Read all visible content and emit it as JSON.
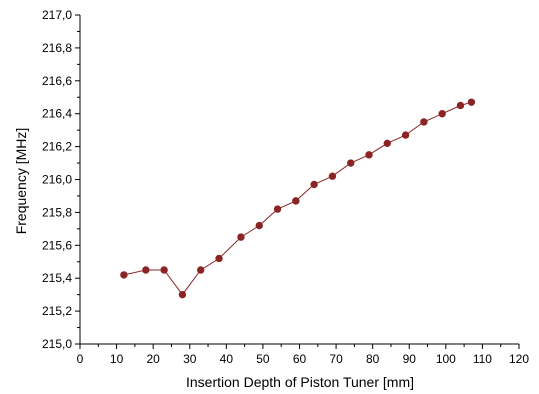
{
  "chart_data": {
    "type": "line",
    "title": "",
    "xlabel": "Insertion Depth of Piston Tuner [mm]",
    "ylabel": "Frequency [MHz]",
    "xlim": [
      0,
      120
    ],
    "ylim": [
      215.0,
      217.0
    ],
    "xticks": [
      "0",
      "10",
      "20",
      "30",
      "40",
      "50",
      "60",
      "70",
      "80",
      "90",
      "100",
      "110",
      "120"
    ],
    "yticks": [
      "215,0",
      "215,2",
      "215,4",
      "215,6",
      "215,8",
      "216,0",
      "216,2",
      "216,4",
      "216,6",
      "216,8",
      "217,0"
    ],
    "grid": false,
    "series": [
      {
        "color": "#8b2525",
        "x": [
          12,
          18,
          23,
          28,
          33,
          38,
          44,
          49,
          54,
          59,
          64,
          69,
          74,
          79,
          84,
          89,
          94,
          99,
          104,
          107
        ],
        "y": [
          215.42,
          215.45,
          215.45,
          215.3,
          215.45,
          215.52,
          215.65,
          215.72,
          215.82,
          215.87,
          215.97,
          216.02,
          216.1,
          216.15,
          216.22,
          216.27,
          216.35,
          216.4,
          216.45,
          216.47
        ]
      }
    ]
  }
}
